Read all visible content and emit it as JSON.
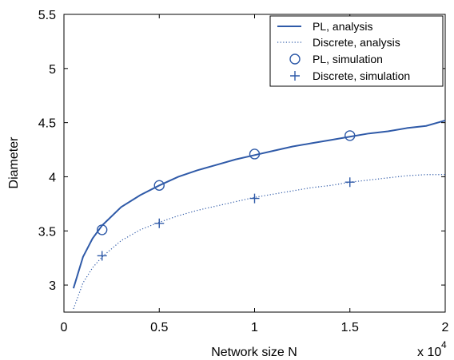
{
  "chart_data": {
    "type": "line",
    "xlabel": "Network size N",
    "ylabel": "Diameter",
    "x_multiplier_label": "x 10",
    "x_multiplier_exponent": "4",
    "xlim": [
      0,
      2
    ],
    "ylim": [
      2.75,
      5.5
    ],
    "x_ticks": [
      "0",
      "0.5",
      "1",
      "1.5",
      "2"
    ],
    "y_ticks": [
      "3",
      "3.5",
      "4",
      "4.5",
      "5",
      "5.5"
    ],
    "grid": false,
    "legend_position": "top-right",
    "series": [
      {
        "name": "PL, analysis",
        "style": "solid",
        "x": [
          0.05,
          0.1,
          0.15,
          0.2,
          0.3,
          0.4,
          0.5,
          0.6,
          0.7,
          0.8,
          0.9,
          1.0,
          1.1,
          1.2,
          1.3,
          1.4,
          1.5,
          1.6,
          1.7,
          1.8,
          1.9,
          2.0
        ],
        "values": [
          2.97,
          3.26,
          3.43,
          3.55,
          3.72,
          3.83,
          3.92,
          4.0,
          4.06,
          4.11,
          4.16,
          4.2,
          4.24,
          4.28,
          4.31,
          4.34,
          4.37,
          4.4,
          4.42,
          4.45,
          4.47,
          4.52
        ]
      },
      {
        "name": "Discrete, analysis",
        "style": "dotted",
        "x": [
          0.05,
          0.1,
          0.15,
          0.2,
          0.3,
          0.4,
          0.5,
          0.6,
          0.7,
          0.8,
          0.9,
          1.0,
          1.1,
          1.2,
          1.3,
          1.4,
          1.5,
          1.6,
          1.7,
          1.8,
          1.9,
          2.0
        ],
        "values": [
          2.78,
          3.02,
          3.16,
          3.26,
          3.41,
          3.51,
          3.58,
          3.64,
          3.69,
          3.73,
          3.77,
          3.81,
          3.84,
          3.87,
          3.9,
          3.92,
          3.95,
          3.97,
          3.99,
          4.01,
          4.02,
          4.02
        ]
      },
      {
        "name": "PL, simulation",
        "style": "circle",
        "x": [
          0.2,
          0.5,
          1.0,
          1.5
        ],
        "values": [
          3.51,
          3.92,
          4.21,
          4.38
        ]
      },
      {
        "name": "Discrete, simulation",
        "style": "plus",
        "x": [
          0.2,
          0.5,
          1.0,
          1.5
        ],
        "values": [
          3.27,
          3.57,
          3.8,
          3.95
        ]
      }
    ]
  },
  "colors": {
    "series": "#2f5aa8",
    "axes": "#000000"
  }
}
